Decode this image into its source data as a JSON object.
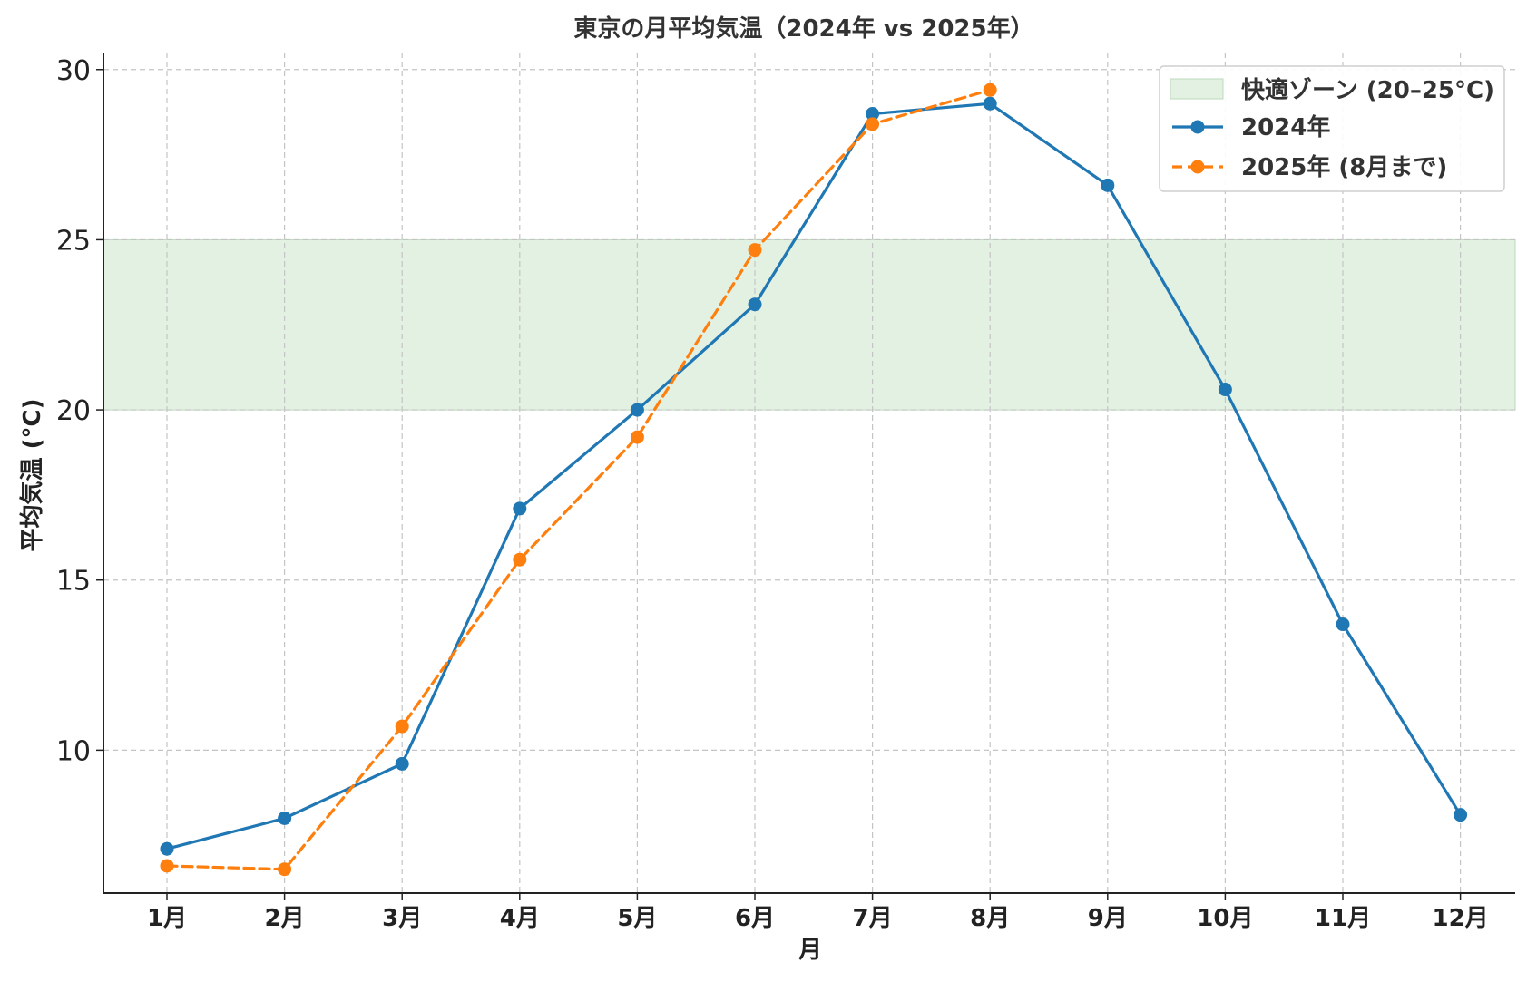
{
  "chart_data": {
    "type": "line",
    "title": "東京の月平均気温（2024年 vs 2025年）",
    "xlabel": "月",
    "ylabel": "平均気温 (°C)",
    "categories": [
      "1月",
      "2月",
      "3月",
      "4月",
      "5月",
      "6月",
      "7月",
      "8月",
      "9月",
      "10月",
      "11月",
      "12月"
    ],
    "ylim": [
      5.8,
      30.5
    ],
    "yticks": [
      10,
      15,
      20,
      25,
      30
    ],
    "grid": true,
    "legend_position": "top-right",
    "band": {
      "label": "快適ゾーン (20–25°C)",
      "from": 20,
      "to": 25,
      "color": "#e3f1e3",
      "edge_color": "#bcd9bc"
    },
    "series": [
      {
        "name": "2024年",
        "color": "#1f77b4",
        "style": "solid",
        "values": [
          7.1,
          8.0,
          9.6,
          17.1,
          20.0,
          23.1,
          28.7,
          29.0,
          26.6,
          20.6,
          13.7,
          8.1
        ]
      },
      {
        "name": "2025年 (8月まで)",
        "color": "#ff7f0e",
        "style": "dashed",
        "values": [
          6.6,
          6.5,
          10.7,
          15.6,
          19.2,
          24.7,
          28.4,
          29.4,
          null,
          null,
          null,
          null
        ]
      }
    ]
  }
}
